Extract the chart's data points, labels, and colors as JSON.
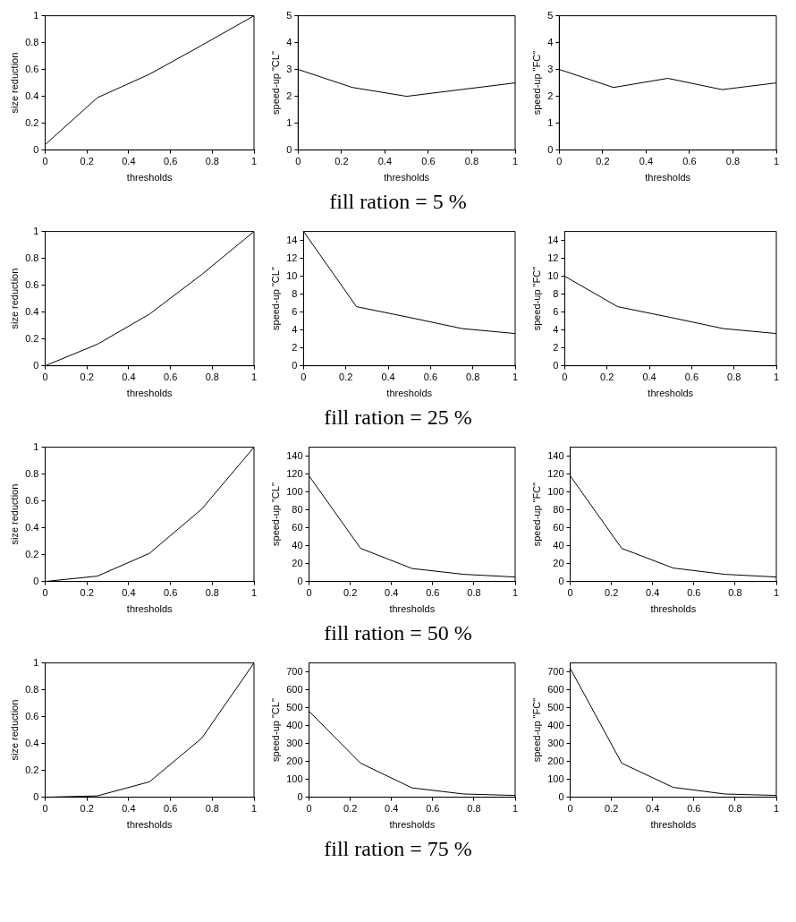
{
  "chart_data": [
    {
      "type": "line",
      "xlabel": "thresholds",
      "ylabel": "size reduction",
      "x": [
        0,
        0.25,
        0.5,
        0.75,
        1
      ],
      "color": "#000000",
      "marker": "none",
      "values": [
        0.04,
        0.39,
        0.565,
        0.78,
        1
      ],
      "xlim": [
        0,
        1
      ],
      "xticks": [
        0,
        0.2,
        0.4,
        0.6,
        0.8,
        1
      ],
      "ylim": [
        0,
        1
      ],
      "yticks": [
        0,
        0.2,
        0.4,
        0.6,
        0.8,
        1
      ],
      "annotations": [
        "fill ration = 5 %"
      ]
    },
    {
      "type": "line",
      "xlabel": "thresholds",
      "ylabel": "speed-up \"CL\"",
      "x": [
        0,
        0.25,
        0.5,
        0.75,
        1
      ],
      "color": "#000000",
      "marker": "none",
      "values": [
        3.0,
        2.33,
        2.0,
        2.25,
        2.5
      ],
      "xlim": [
        0,
        1
      ],
      "xticks": [
        0,
        0.2,
        0.4,
        0.6,
        0.8,
        1
      ],
      "ylim": [
        0,
        5
      ],
      "yticks": [
        0,
        1,
        2,
        3,
        4,
        5
      ]
    },
    {
      "type": "line",
      "xlabel": "thresholds",
      "ylabel": "speed-up \"FC\"",
      "x": [
        0,
        0.25,
        0.5,
        0.75,
        1
      ],
      "color": "#000000",
      "marker": "none",
      "values": [
        3.0,
        2.33,
        2.67,
        2.25,
        2.5
      ],
      "xlim": [
        0,
        1
      ],
      "xticks": [
        0,
        0.2,
        0.4,
        0.6,
        0.8,
        1
      ],
      "ylim": [
        0,
        5
      ],
      "yticks": [
        0,
        1,
        2,
        3,
        4,
        5
      ]
    },
    {
      "type": "line",
      "xlabel": "thresholds",
      "ylabel": "size reduction",
      "x": [
        0,
        0.25,
        0.5,
        0.75,
        1
      ],
      "color": "#000000",
      "marker": "none",
      "values": [
        0.0,
        0.16,
        0.385,
        0.68,
        1
      ],
      "xlim": [
        0,
        1
      ],
      "xticks": [
        0,
        0.2,
        0.4,
        0.6,
        0.8,
        1
      ],
      "ylim": [
        0,
        1
      ],
      "yticks": [
        0,
        0.2,
        0.4,
        0.6,
        0.8,
        1
      ],
      "annotations": [
        "fill ration = 25 %"
      ]
    },
    {
      "type": "line",
      "xlabel": "thresholds",
      "ylabel": "speed-up \"CL\"",
      "x": [
        0,
        0.25,
        0.5,
        0.75,
        1
      ],
      "color": "#000000",
      "marker": "none",
      "values": [
        15,
        6.6,
        5.4,
        4.15,
        3.6
      ],
      "xlim": [
        0,
        1
      ],
      "xticks": [
        0,
        0.2,
        0.4,
        0.6,
        0.8,
        1
      ],
      "ylim": [
        0,
        15
      ],
      "yticks": [
        0,
        2,
        4,
        6,
        8,
        10,
        12,
        14
      ]
    },
    {
      "type": "line",
      "xlabel": "thresholds",
      "ylabel": "speed-up \"FC\"",
      "x": [
        0,
        0.25,
        0.5,
        0.75,
        1
      ],
      "color": "#000000",
      "marker": "none",
      "values": [
        10,
        6.6,
        5.4,
        4.15,
        3.6
      ],
      "xlim": [
        0,
        1
      ],
      "xticks": [
        0,
        0.2,
        0.4,
        0.6,
        0.8,
        1
      ],
      "ylim": [
        0,
        15
      ],
      "yticks": [
        0,
        2,
        4,
        6,
        8,
        10,
        12,
        14
      ]
    },
    {
      "type": "line",
      "xlabel": "thresholds",
      "ylabel": "size reduction",
      "x": [
        0,
        0.25,
        0.5,
        0.75,
        1
      ],
      "color": "#000000",
      "marker": "none",
      "values": [
        0.0,
        0.04,
        0.21,
        0.54,
        1
      ],
      "xlim": [
        0,
        1
      ],
      "xticks": [
        0,
        0.2,
        0.4,
        0.6,
        0.8,
        1
      ],
      "ylim": [
        0,
        1
      ],
      "yticks": [
        0,
        0.2,
        0.4,
        0.6,
        0.8,
        1
      ],
      "annotations": [
        "fill ration = 50 %"
      ]
    },
    {
      "type": "line",
      "xlabel": "thresholds",
      "ylabel": "speed-up \"CL\"",
      "x": [
        0,
        0.25,
        0.5,
        0.75,
        1
      ],
      "color": "#000000",
      "marker": "none",
      "values": [
        118,
        37,
        14.5,
        8,
        5
      ],
      "xlim": [
        0,
        1
      ],
      "xticks": [
        0,
        0.2,
        0.4,
        0.6,
        0.8,
        1
      ],
      "ylim": [
        0,
        150
      ],
      "yticks": [
        0,
        20,
        40,
        60,
        80,
        100,
        120,
        140
      ]
    },
    {
      "type": "line",
      "xlabel": "thresholds",
      "ylabel": "speed-up \"FC\"",
      "x": [
        0,
        0.25,
        0.5,
        0.75,
        1
      ],
      "color": "#000000",
      "marker": "none",
      "values": [
        118,
        37,
        15,
        8,
        5
      ],
      "xlim": [
        0,
        1
      ],
      "xticks": [
        0,
        0.2,
        0.4,
        0.6,
        0.8,
        1
      ],
      "ylim": [
        0,
        150
      ],
      "yticks": [
        0,
        20,
        40,
        60,
        80,
        100,
        120,
        140
      ]
    },
    {
      "type": "line",
      "xlabel": "thresholds",
      "ylabel": "size reduction",
      "x": [
        0,
        0.25,
        0.5,
        0.75,
        1
      ],
      "color": "#000000",
      "marker": "none",
      "values": [
        0.0,
        0.01,
        0.115,
        0.44,
        1
      ],
      "xlim": [
        0,
        1
      ],
      "xticks": [
        0,
        0.2,
        0.4,
        0.6,
        0.8,
        1
      ],
      "ylim": [
        0,
        1
      ],
      "yticks": [
        0,
        0.2,
        0.4,
        0.6,
        0.8,
        1
      ],
      "annotations": [
        "fill ration = 75 %"
      ]
    },
    {
      "type": "line",
      "xlabel": "thresholds",
      "ylabel": "speed-up \"CL\"",
      "x": [
        0,
        0.25,
        0.5,
        0.75,
        1
      ],
      "color": "#000000",
      "marker": "none",
      "values": [
        480,
        190,
        52,
        18,
        10
      ],
      "xlim": [
        0,
        1
      ],
      "xticks": [
        0,
        0.2,
        0.4,
        0.6,
        0.8,
        1
      ],
      "ylim": [
        0,
        750
      ],
      "yticks": [
        0,
        100,
        200,
        300,
        400,
        500,
        600,
        700
      ]
    },
    {
      "type": "line",
      "xlabel": "thresholds",
      "ylabel": "speed-up \"FC\"",
      "x": [
        0,
        0.25,
        0.5,
        0.75,
        1
      ],
      "color": "#000000",
      "marker": "none",
      "values": [
        720,
        190,
        55,
        18,
        10
      ],
      "xlim": [
        0,
        1
      ],
      "xticks": [
        0,
        0.2,
        0.4,
        0.6,
        0.8,
        1
      ],
      "ylim": [
        0,
        750
      ],
      "yticks": [
        0,
        100,
        200,
        300,
        400,
        500,
        600,
        700
      ]
    }
  ]
}
